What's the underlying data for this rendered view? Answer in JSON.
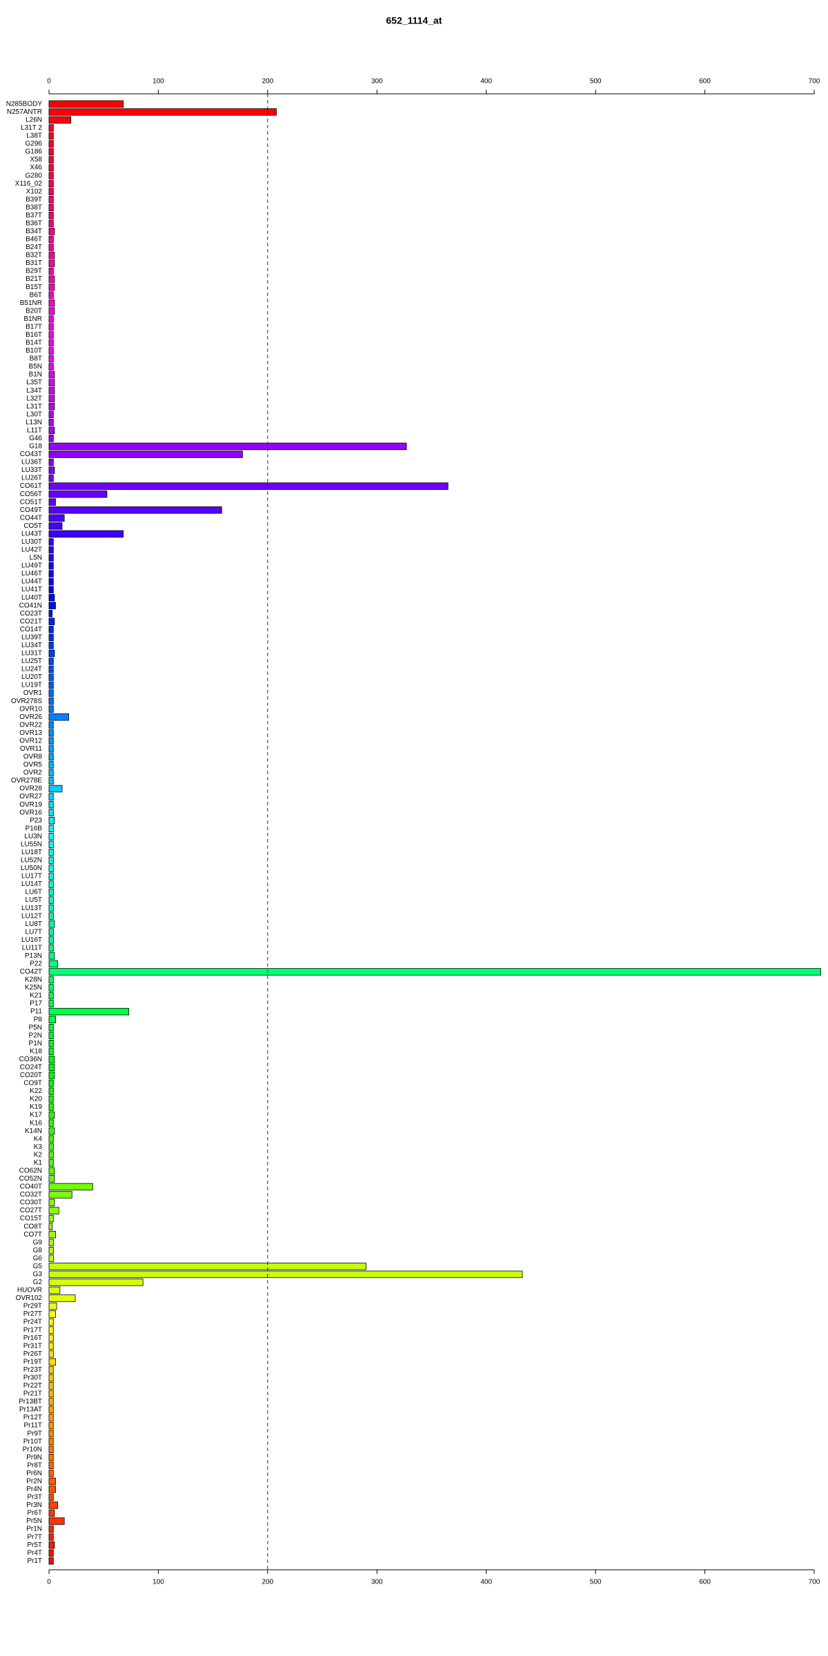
{
  "chart_data": {
    "type": "barh",
    "title": "652_1114_at",
    "categories": [
      "N285BODY",
      "N257ANTR",
      "L26N",
      "L31T 2",
      "L38T",
      "G296",
      "G186",
      "X58",
      "X46",
      "G280",
      "X116_02",
      "X102",
      "B39T",
      "B38T",
      "B37T",
      "B36T",
      "B34T",
      "B46T",
      "B24T",
      "B32T",
      "B31T",
      "B29T",
      "B21T",
      "B15T",
      "B6T",
      "B51NR",
      "B20T",
      "B1NR",
      "B17T",
      "B16T",
      "B14T",
      "B10T",
      "B8T",
      "B5N",
      "B1N",
      "L35T",
      "L34T",
      "L32T",
      "L31T",
      "L30T",
      "L13N",
      "L11T",
      "G46",
      "G18",
      "CO43T",
      "LU36T",
      "LU33T",
      "LU26T",
      "CO61T",
      "CO56T",
      "CO51T",
      "CO49T",
      "CO44T",
      "CO5T",
      "LU43T",
      "LU30T",
      "LU42T",
      "L5N",
      "LU49T",
      "LU46T",
      "LU44T",
      "LU41T",
      "LU40T",
      "CO41N",
      "CO23T",
      "CO21T",
      "CO14T",
      "LU39T",
      "LU34T",
      "LU31T",
      "LU25T",
      "LU24T",
      "LU20T",
      "LU19T",
      "OVR1",
      "OVR278S",
      "OVR10",
      "OVR26",
      "OVR22",
      "OVR13",
      "OVR12",
      "OVR11",
      "OVR8",
      "OVR5",
      "OVR2",
      "OVR278E",
      "OVR28",
      "OVR27",
      "OVR19",
      "OVR16",
      "P23",
      "P16B",
      "LU3N",
      "LU55N",
      "LU18T",
      "LU52N",
      "LU50N",
      "LU17T",
      "LU14T",
      "LU6T",
      "LU5T",
      "LU13T",
      "LU12T",
      "LU8T",
      "LU7T",
      "LU16T",
      "LU11T",
      "P13N",
      "P22",
      "CO42T",
      "K28N",
      "K25N",
      "K21",
      "P17",
      "P11",
      "P8",
      "P5N",
      "P2N",
      "P1N",
      "K18",
      "CO36N",
      "CO24T",
      "CO20T",
      "CO9T",
      "K22",
      "K20",
      "K19",
      "K17",
      "K16",
      "K14N",
      "K4",
      "K3",
      "K2",
      "K1",
      "CO62N",
      "CO52N",
      "CO40T",
      "CO32T",
      "CO30T",
      "CO27T",
      "CO15T",
      "CO8T",
      "CO7T",
      "G9",
      "G8",
      "G6",
      "G5",
      "G3",
      "G2",
      "HUOVR",
      "OVR102",
      "Pr29T",
      "Pr27T",
      "Pr24T",
      "Pr17T",
      "Pr16T",
      "Pr31T",
      "Pr26T",
      "Pr19T",
      "Pr23T",
      "Pr30T",
      "Pr22T",
      "Pr21T",
      "Pr13BT",
      "Pr13AT",
      "Pr12T",
      "Pr11T",
      "Pr9T",
      "Pr10T",
      "Pr10N",
      "Pr9N",
      "Pr8T",
      "Pr6N",
      "Pr2N",
      "Pr4N",
      "Pr3T",
      "Pr3N",
      "Pr6T",
      "Pr5N",
      "Pr1N",
      "Pr7T",
      "Pr5T",
      "Pr4T",
      "Pr1T"
    ],
    "values": [
      68,
      208,
      20,
      4,
      4,
      4,
      4,
      4,
      4,
      4,
      4,
      4,
      4,
      4,
      4,
      4,
      5,
      4,
      4,
      5,
      5,
      4,
      5,
      5,
      4,
      5,
      5,
      4,
      4,
      4,
      4,
      4,
      4,
      4,
      5,
      5,
      5,
      5,
      5,
      4,
      4,
      5,
      4,
      327,
      177,
      4,
      5,
      4,
      365,
      53,
      6,
      158,
      14,
      12,
      68,
      4,
      4,
      4,
      4,
      4,
      4,
      4,
      5,
      6,
      3,
      5,
      4,
      4,
      4,
      5,
      4,
      4,
      4,
      4,
      4,
      4,
      4,
      18,
      4,
      4,
      4,
      4,
      4,
      4,
      4,
      4,
      12,
      4,
      4,
      4,
      5,
      4,
      4,
      4,
      4,
      4,
      4,
      4,
      4,
      4,
      4,
      4,
      4,
      5,
      4,
      4,
      4,
      5,
      8,
      706,
      4,
      4,
      4,
      4,
      73,
      6,
      4,
      4,
      4,
      4,
      5,
      5,
      5,
      4,
      4,
      4,
      4,
      5,
      4,
      5,
      4,
      4,
      4,
      4,
      5,
      5,
      40,
      21,
      5,
      9,
      4,
      3,
      6,
      4,
      4,
      4,
      290,
      433,
      86,
      10,
      24,
      7,
      6,
      4,
      4,
      4,
      4,
      4,
      6,
      4,
      4,
      4,
      4,
      4,
      4,
      4,
      4,
      4,
      4,
      4,
      4,
      4,
      4,
      6,
      6,
      4,
      8,
      5,
      14,
      4,
      4,
      5,
      4,
      4
    ],
    "color": "rainbow",
    "xlim": [
      0,
      700
    ],
    "xticks": [
      0,
      100,
      200,
      300,
      400,
      500,
      600,
      700
    ],
    "reference_line": 200
  }
}
